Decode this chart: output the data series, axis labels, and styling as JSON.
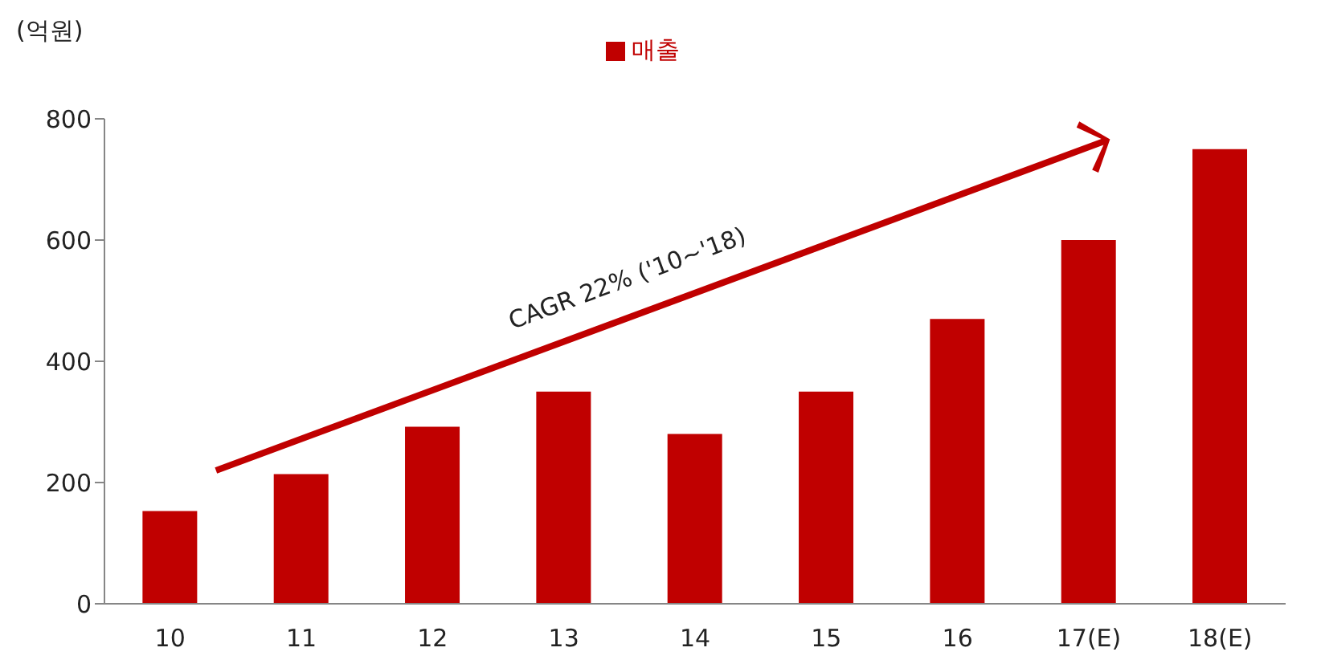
{
  "chart_data": {
    "type": "bar",
    "ylabel": "(억원)",
    "categories": [
      "10",
      "11",
      "12",
      "13",
      "14",
      "15",
      "16",
      "17(E)",
      "18(E)"
    ],
    "series": [
      {
        "name": "매출",
        "color": "#c00000",
        "values": [
          153,
          214,
          292,
          350,
          280,
          350,
          470,
          600,
          750
        ]
      }
    ],
    "ylim": [
      0,
      800
    ],
    "yticks": [
      0,
      200,
      400,
      600,
      800
    ],
    "grid": false,
    "legend": "top",
    "annotations": [
      "CAGR 22% ('10~'18)"
    ]
  }
}
